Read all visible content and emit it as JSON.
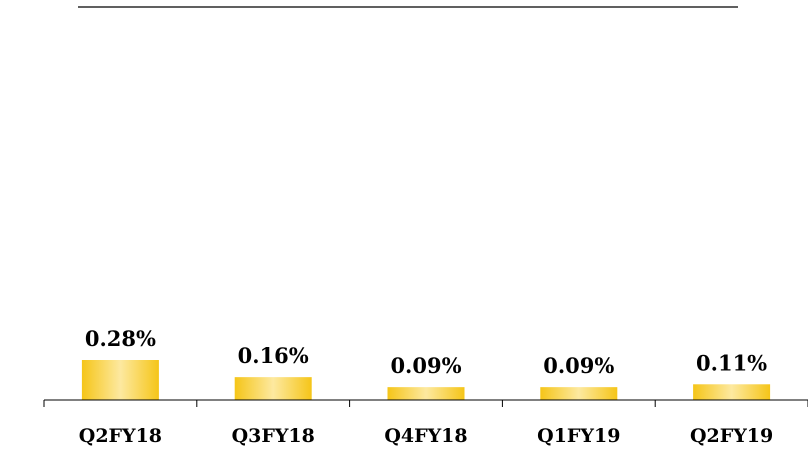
{
  "chart_data": {
    "type": "bar",
    "categories": [
      "Q2FY18",
      "Q3FY18",
      "Q4FY18",
      "Q1FY19",
      "Q2FY19"
    ],
    "values": [
      0.28,
      0.16,
      0.09,
      0.09,
      0.11
    ],
    "data_labels": [
      "0.28%",
      "0.16%",
      "0.09%",
      "0.09%",
      "0.11%"
    ],
    "title": "",
    "xlabel": "",
    "ylabel": "",
    "ylim": [
      0,
      2.8
    ],
    "grid": false,
    "legend": "none",
    "bar_gradient": [
      "#f5c518",
      "#fde9a0"
    ]
  }
}
